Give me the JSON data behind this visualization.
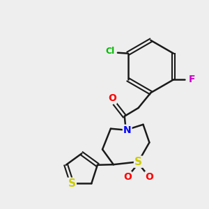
{
  "bg_color": "#eeeeee",
  "bond_color": "#1a1a1a",
  "atom_colors": {
    "O": "#ff0000",
    "N": "#0000ff",
    "S": "#cccc00",
    "Cl": "#00bb00",
    "F": "#cc00cc"
  },
  "figsize": [
    3.0,
    3.0
  ],
  "dpi": 100
}
